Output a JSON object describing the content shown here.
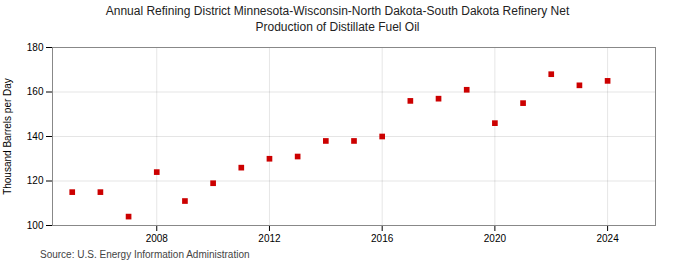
{
  "chart_data": {
    "type": "scatter",
    "title": "Annual Refining District Minnesota-Wisconsin-North Dakota-South Dakota Refinery Net\nProduction of Distillate Fuel Oil",
    "ylabel": "Thousand Barrels per Day",
    "source": "Source: U.S. Energy Information Administration",
    "x": [
      2005,
      2006,
      2007,
      2008,
      2009,
      2010,
      2011,
      2012,
      2013,
      2014,
      2015,
      2016,
      2017,
      2018,
      2019,
      2020,
      2021,
      2022,
      2023,
      2024
    ],
    "values": [
      115,
      115,
      104,
      124,
      111,
      119,
      126,
      130,
      131,
      138,
      138,
      140,
      156,
      157,
      161,
      146,
      155,
      168,
      163,
      165
    ],
    "xlim": [
      2004.3,
      2025.7
    ],
    "xticks": [
      2008,
      2012,
      2016,
      2020,
      2024
    ],
    "ylim": [
      100,
      180
    ],
    "yticks": [
      100,
      120,
      140,
      160,
      180
    ],
    "color": "#cc0000",
    "marker": "square",
    "grid": true
  }
}
